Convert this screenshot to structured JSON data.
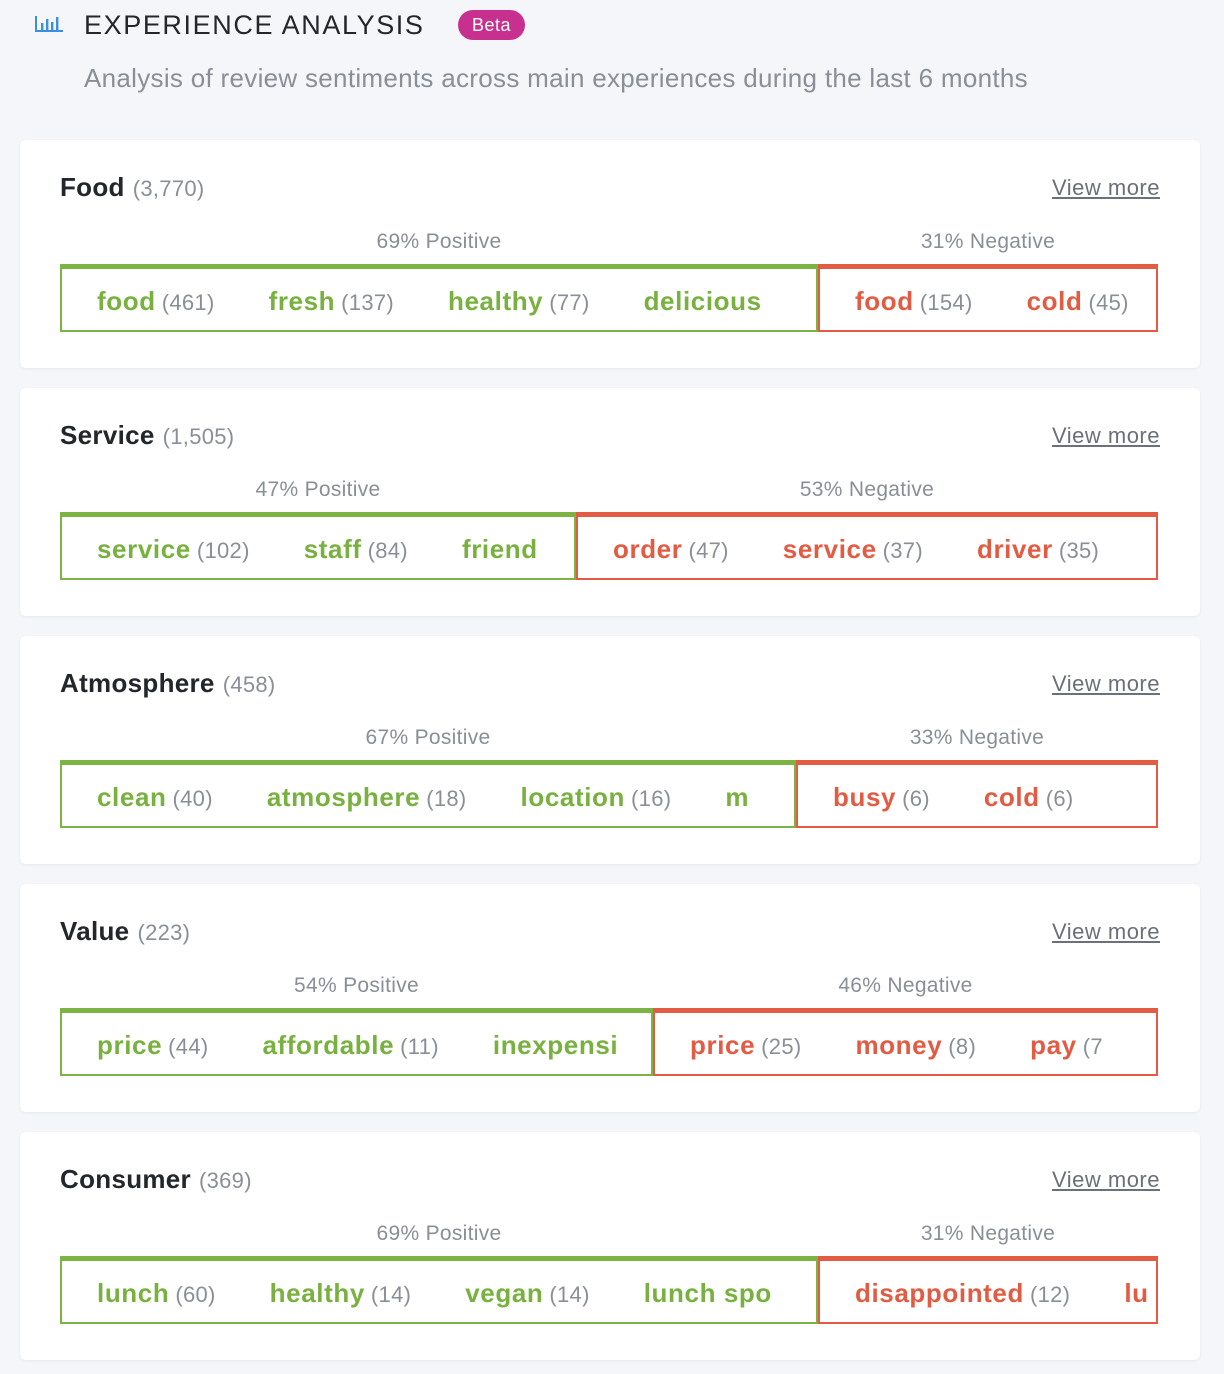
{
  "header": {
    "title": "EXPERIENCE ANALYSIS",
    "badge": "Beta",
    "subtitle": "Analysis of review sentiments across main experiences during the last 6 months",
    "icon": "bar-chart-icon"
  },
  "colors": {
    "positive": "#7cb342",
    "negative": "#e25c44",
    "badge": "#c8308f"
  },
  "view_more_label": "View more",
  "experiences": [
    {
      "name": "Food",
      "count": "(3,770)",
      "positive_label": "69% Positive",
      "negative_label": "31% Negative",
      "positive_share": 0.69,
      "negative_share": 0.31,
      "positive_keywords": [
        {
          "word": "food",
          "count": "(461)"
        },
        {
          "word": "fresh",
          "count": "(137)"
        },
        {
          "word": "healthy",
          "count": "(77)"
        },
        {
          "word": "delicious",
          "count": ""
        }
      ],
      "negative_keywords": [
        {
          "word": "food",
          "count": "(154)"
        },
        {
          "word": "cold",
          "count": "(45)"
        }
      ]
    },
    {
      "name": "Service",
      "count": "(1,505)",
      "positive_label": "47% Positive",
      "negative_label": "53% Negative",
      "positive_share": 0.47,
      "negative_share": 0.53,
      "positive_keywords": [
        {
          "word": "service",
          "count": "(102)"
        },
        {
          "word": "staff",
          "count": "(84)"
        },
        {
          "word": "friend",
          "count": ""
        }
      ],
      "negative_keywords": [
        {
          "word": "order",
          "count": "(47)"
        },
        {
          "word": "service",
          "count": "(37)"
        },
        {
          "word": "driver",
          "count": "(35)"
        }
      ]
    },
    {
      "name": "Atmosphere",
      "count": "(458)",
      "positive_label": "67% Positive",
      "negative_label": "33% Negative",
      "positive_share": 0.67,
      "negative_share": 0.33,
      "positive_keywords": [
        {
          "word": "clean",
          "count": "(40)"
        },
        {
          "word": "atmosphere",
          "count": "(18)"
        },
        {
          "word": "location",
          "count": "(16)"
        },
        {
          "word": "m",
          "count": ""
        }
      ],
      "negative_keywords": [
        {
          "word": "busy",
          "count": "(6)"
        },
        {
          "word": "cold",
          "count": "(6)"
        }
      ]
    },
    {
      "name": "Value",
      "count": "(223)",
      "positive_label": "54% Positive",
      "negative_label": "46% Negative",
      "positive_share": 0.54,
      "negative_share": 0.46,
      "positive_keywords": [
        {
          "word": "price",
          "count": "(44)"
        },
        {
          "word": "affordable",
          "count": "(11)"
        },
        {
          "word": "inexpensi",
          "count": ""
        }
      ],
      "negative_keywords": [
        {
          "word": "price",
          "count": "(25)"
        },
        {
          "word": "money",
          "count": "(8)"
        },
        {
          "word": "pay",
          "count": "(7"
        }
      ]
    },
    {
      "name": "Consumer",
      "count": "(369)",
      "positive_label": "69% Positive",
      "negative_label": "31% Negative",
      "positive_share": 0.69,
      "negative_share": 0.31,
      "positive_keywords": [
        {
          "word": "lunch",
          "count": "(60)"
        },
        {
          "word": "healthy",
          "count": "(14)"
        },
        {
          "word": "vegan",
          "count": "(14)"
        },
        {
          "word": "lunch spo",
          "count": ""
        }
      ],
      "negative_keywords": [
        {
          "word": "disappointed",
          "count": "(12)"
        },
        {
          "word": "lu",
          "count": ""
        }
      ]
    }
  ]
}
